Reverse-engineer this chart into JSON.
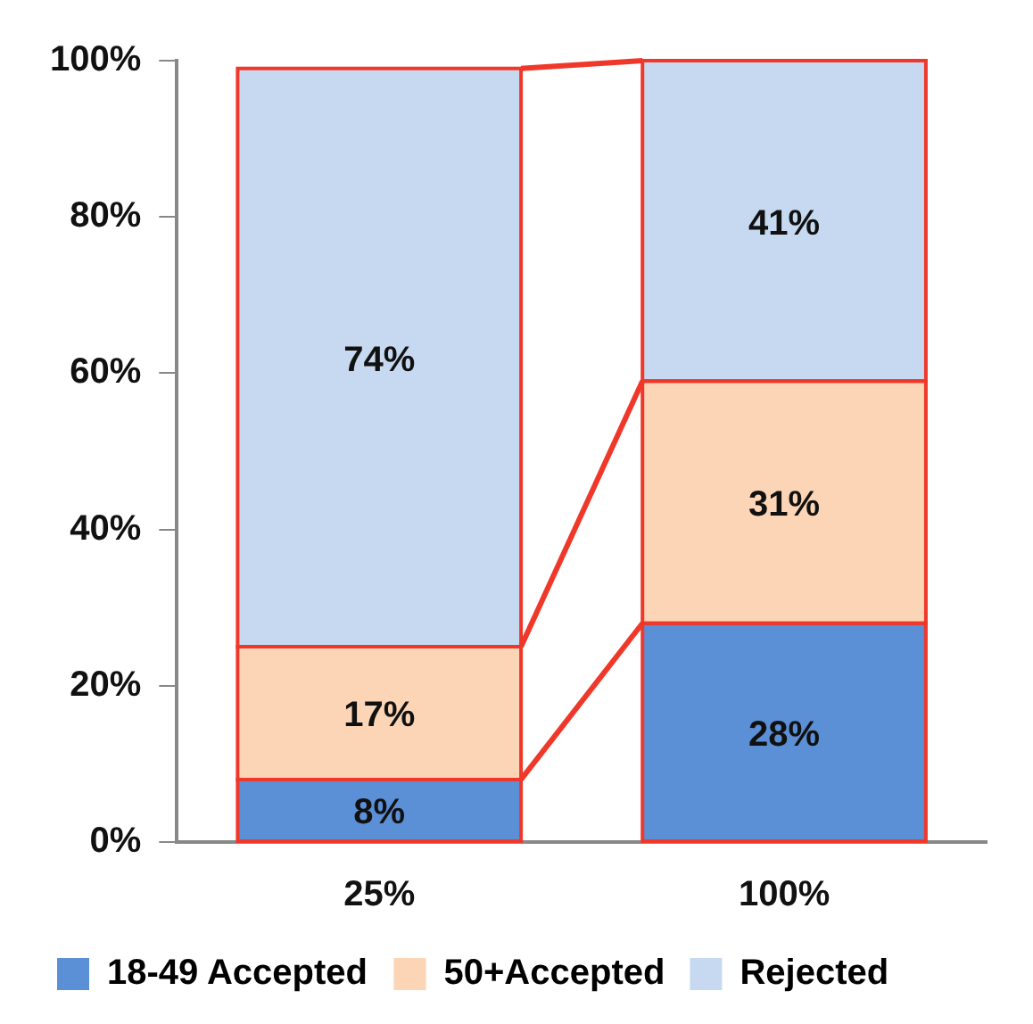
{
  "chart_data": {
    "type": "bar",
    "stacked": true,
    "categories": [
      "25%",
      "100%"
    ],
    "series": [
      {
        "name": "18-49 Accepted",
        "color": "#5b8fd6",
        "values": [
          8,
          28
        ],
        "value_labels": [
          "8%",
          "28%"
        ]
      },
      {
        "name": "50+Accepted",
        "color": "#fbd5b5",
        "values": [
          17,
          31
        ],
        "value_labels": [
          "17%",
          "31%"
        ]
      },
      {
        "name": "Rejected",
        "color": "#c6d9f0",
        "values": [
          74,
          41
        ],
        "value_labels": [
          "74%",
          "41%"
        ]
      }
    ],
    "ylim": [
      0,
      100
    ],
    "yticks": [
      {
        "value": 0,
        "label": "0%"
      },
      {
        "value": 20,
        "label": "20%"
      },
      {
        "value": 40,
        "label": "40%"
      },
      {
        "value": 60,
        "label": "60%"
      },
      {
        "value": 80,
        "label": "80%"
      },
      {
        "value": 100,
        "label": "100%"
      }
    ],
    "grid": false,
    "legend": "bottom"
  }
}
